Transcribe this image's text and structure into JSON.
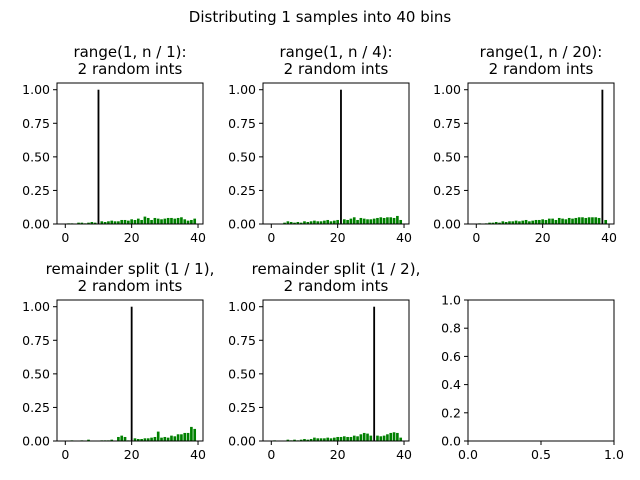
{
  "title": "Distributing 1 samples into 40 bins",
  "colors": {
    "background_bars": "#008000",
    "highlight_bar": "#000000",
    "axes": "#000000"
  },
  "chart_data": [
    {
      "type": "bar",
      "title_lines": [
        "range(1, n / 1):",
        "2 random ints"
      ],
      "xlim": [
        -2.5,
        41.5
      ],
      "ylim": [
        0,
        1.05
      ],
      "xticks": [
        0,
        20,
        40
      ],
      "yticks": [
        0.0,
        0.25,
        0.5,
        0.75,
        1.0
      ],
      "xtick_labels": [
        "0",
        "20",
        "40"
      ],
      "ytick_labels": [
        "0.00",
        "0.25",
        "0.50",
        "0.75",
        "1.00"
      ],
      "x": [
        0,
        1,
        2,
        3,
        4,
        5,
        6,
        7,
        8,
        9,
        10,
        11,
        12,
        13,
        14,
        15,
        16,
        17,
        18,
        19,
        20,
        21,
        22,
        23,
        24,
        25,
        26,
        27,
        28,
        29,
        30,
        31,
        32,
        33,
        34,
        35,
        36,
        37,
        38,
        39
      ],
      "highlight_bin": 10,
      "values": [
        0,
        0.005,
        0.005,
        0,
        0.01,
        0.01,
        0.005,
        0.01,
        0.015,
        0.01,
        1.0,
        0.02,
        0.015,
        0.02,
        0.025,
        0.02,
        0.02,
        0.03,
        0.03,
        0.025,
        0.035,
        0.03,
        0.04,
        0.03,
        0.055,
        0.045,
        0.03,
        0.045,
        0.04,
        0.035,
        0.04,
        0.045,
        0.045,
        0.04,
        0.045,
        0.05,
        0.035,
        0.025,
        0.03,
        0.04
      ]
    },
    {
      "type": "bar",
      "title_lines": [
        "range(1, n / 4):",
        "2 random ints"
      ],
      "xlim": [
        -2.5,
        41.5
      ],
      "ylim": [
        0,
        1.05
      ],
      "xticks": [
        0,
        20,
        40
      ],
      "yticks": [
        0.0,
        0.25,
        0.5,
        0.75,
        1.0
      ],
      "xtick_labels": [
        "0",
        "20",
        "40"
      ],
      "ytick_labels": [
        "0.00",
        "0.25",
        "0.50",
        "0.75",
        "1.00"
      ],
      "x": [
        0,
        1,
        2,
        3,
        4,
        5,
        6,
        7,
        8,
        9,
        10,
        11,
        12,
        13,
        14,
        15,
        16,
        17,
        18,
        19,
        20,
        21,
        22,
        23,
        24,
        25,
        26,
        27,
        28,
        29,
        30,
        31,
        32,
        33,
        34,
        35,
        36,
        37,
        38,
        39
      ],
      "highlight_bin": 21,
      "values": [
        0,
        0,
        0,
        0,
        0.01,
        0.02,
        0.015,
        0.01,
        0.015,
        0.01,
        0.02,
        0.015,
        0.02,
        0.025,
        0.02,
        0.02,
        0.025,
        0.03,
        0.02,
        0.025,
        0.03,
        1.0,
        0.035,
        0.03,
        0.04,
        0.05,
        0.03,
        0.045,
        0.04,
        0.035,
        0.035,
        0.04,
        0.045,
        0.05,
        0.045,
        0.05,
        0.05,
        0.045,
        0.06,
        0.03
      ]
    },
    {
      "type": "bar",
      "title_lines": [
        "range(1, n / 20):",
        "2 random ints"
      ],
      "xlim": [
        -2.5,
        41.5
      ],
      "ylim": [
        0,
        1.05
      ],
      "xticks": [
        0,
        20,
        40
      ],
      "yticks": [
        0.0,
        0.25,
        0.5,
        0.75,
        1.0
      ],
      "xtick_labels": [
        "0",
        "20",
        "40"
      ],
      "ytick_labels": [
        "0.00",
        "0.25",
        "0.50",
        "0.75",
        "1.00"
      ],
      "x": [
        0,
        1,
        2,
        3,
        4,
        5,
        6,
        7,
        8,
        9,
        10,
        11,
        12,
        13,
        14,
        15,
        16,
        17,
        18,
        19,
        20,
        21,
        22,
        23,
        24,
        25,
        26,
        27,
        28,
        29,
        30,
        31,
        32,
        33,
        34,
        35,
        36,
        37,
        38,
        39
      ],
      "highlight_bin": 38,
      "values": [
        0,
        0.005,
        0,
        0.005,
        0.01,
        0.01,
        0.015,
        0.01,
        0.02,
        0.015,
        0.02,
        0.02,
        0.025,
        0.02,
        0.025,
        0.03,
        0.02,
        0.025,
        0.03,
        0.03,
        0.035,
        0.03,
        0.04,
        0.04,
        0.03,
        0.045,
        0.04,
        0.035,
        0.045,
        0.04,
        0.045,
        0.05,
        0.05,
        0.045,
        0.05,
        0.05,
        0.05,
        0.045,
        1.0,
        0.03
      ]
    },
    {
      "type": "bar",
      "title_lines": [
        "remainder split (1 / 1),",
        "2 random ints"
      ],
      "xlim": [
        -2.5,
        41.5
      ],
      "ylim": [
        0,
        1.05
      ],
      "xticks": [
        0,
        20,
        40
      ],
      "yticks": [
        0.0,
        0.25,
        0.5,
        0.75,
        1.0
      ],
      "xtick_labels": [
        "0",
        "20",
        "40"
      ],
      "ytick_labels": [
        "0.00",
        "0.25",
        "0.50",
        "0.75",
        "1.00"
      ],
      "x": [
        0,
        1,
        2,
        3,
        4,
        5,
        6,
        7,
        8,
        9,
        10,
        11,
        12,
        13,
        14,
        15,
        16,
        17,
        18,
        19,
        20,
        21,
        22,
        23,
        24,
        25,
        26,
        27,
        28,
        29,
        30,
        31,
        32,
        33,
        34,
        35,
        36,
        37,
        38,
        39
      ],
      "highlight_bin": 20,
      "values": [
        0,
        0,
        0.005,
        0,
        0,
        0.005,
        0,
        0.01,
        0,
        0,
        0,
        0.005,
        0.005,
        0.005,
        0.01,
        0,
        0.03,
        0.04,
        0.03,
        0.005,
        1.0,
        0.02,
        0.015,
        0.015,
        0.02,
        0.02,
        0.025,
        0.03,
        0.07,
        0.025,
        0.03,
        0.025,
        0.04,
        0.035,
        0.05,
        0.05,
        0.06,
        0.06,
        0.105,
        0.09
      ]
    },
    {
      "type": "bar",
      "title_lines": [
        "remainder split (1 / 2),",
        "2 random ints"
      ],
      "xlim": [
        -2.5,
        41.5
      ],
      "ylim": [
        0,
        1.05
      ],
      "xticks": [
        0,
        20,
        40
      ],
      "yticks": [
        0.0,
        0.25,
        0.5,
        0.75,
        1.0
      ],
      "xtick_labels": [
        "0",
        "20",
        "40"
      ],
      "ytick_labels": [
        "0.00",
        "0.25",
        "0.50",
        "0.75",
        "1.00"
      ],
      "x": [
        0,
        1,
        2,
        3,
        4,
        5,
        6,
        7,
        8,
        9,
        10,
        11,
        12,
        13,
        14,
        15,
        16,
        17,
        18,
        19,
        20,
        21,
        22,
        23,
        24,
        25,
        26,
        27,
        28,
        29,
        30,
        31,
        32,
        33,
        34,
        35,
        36,
        37,
        38,
        39
      ],
      "highlight_bin": 31,
      "values": [
        0,
        0.005,
        0,
        0,
        0,
        0.01,
        0.005,
        0.01,
        0.005,
        0.01,
        0.015,
        0.01,
        0.015,
        0.025,
        0.02,
        0.02,
        0.02,
        0.025,
        0.02,
        0.025,
        0.03,
        0.03,
        0.035,
        0.03,
        0.03,
        0.04,
        0.035,
        0.05,
        0.06,
        0.055,
        0.04,
        1.0,
        0.04,
        0.035,
        0.04,
        0.05,
        0.06,
        0.065,
        0.06,
        0.025
      ]
    },
    {
      "type": "empty",
      "title_lines": [],
      "xlim": [
        0,
        1
      ],
      "ylim": [
        0,
        1
      ],
      "xticks": [
        0,
        0.5,
        1
      ],
      "yticks": [
        0,
        0.2,
        0.4,
        0.6,
        0.8,
        1.0
      ],
      "xtick_labels": [
        "0.0",
        "0.5",
        "1.0"
      ],
      "ytick_labels": [
        "0.0",
        "0.2",
        "0.4",
        "0.6",
        "0.8",
        "1.0"
      ]
    }
  ]
}
